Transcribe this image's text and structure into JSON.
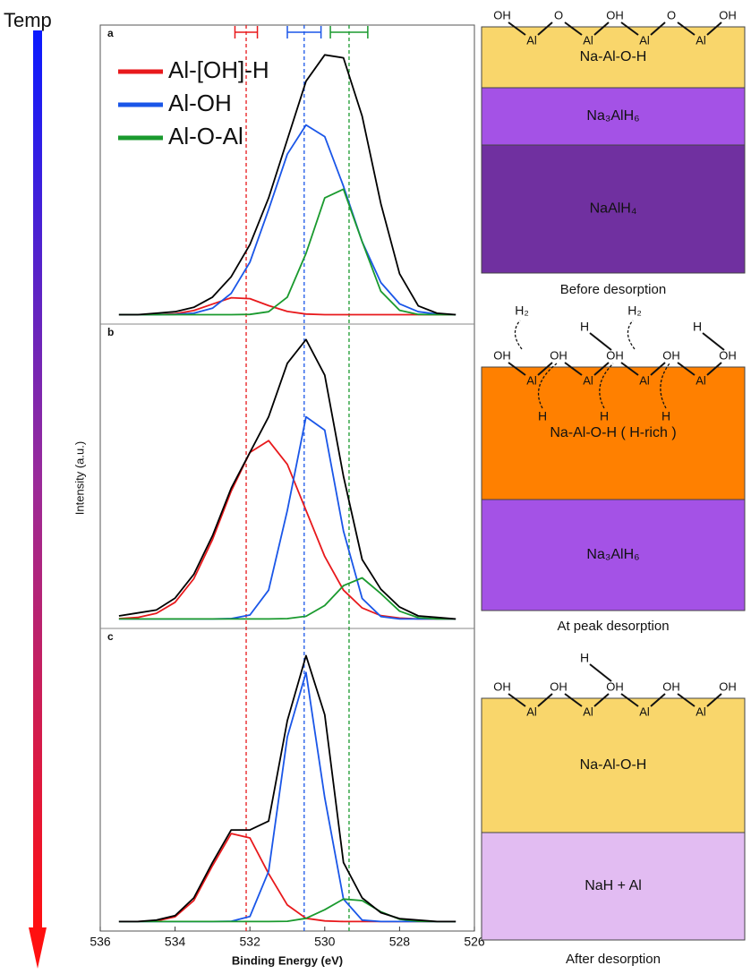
{
  "temp_label": "Temp",
  "chart_data": [
    {
      "type": "line",
      "panel_label": "a",
      "xlim": [
        536,
        526
      ],
      "ylim": [
        0,
        100
      ],
      "legend_position": "upper left",
      "x": [
        535.5,
        535,
        534.5,
        534,
        533.5,
        533,
        532.5,
        532,
        531.5,
        531,
        530.5,
        530,
        529.5,
        529,
        528.5,
        528,
        527.5,
        527,
        526.5
      ],
      "spectrum": {
        "color": "#000000",
        "values": [
          2,
          2,
          2.5,
          3,
          4.5,
          8,
          15,
          26,
          42,
          62,
          82,
          91,
          90,
          70,
          40,
          16,
          5,
          2.5,
          2
        ]
      },
      "series": [
        {
          "name": "Al-[OH]-H",
          "color": "#e8191c",
          "values": [
            2,
            2,
            2,
            2.3,
            3.4,
            5.6,
            7.8,
            7.5,
            5.1,
            3.1,
            2.2,
            2,
            2,
            2,
            2,
            2,
            2,
            2,
            2
          ]
        },
        {
          "name": "Al-OH",
          "color": "#1a56e8",
          "values": [
            2,
            2,
            2,
            2.1,
            2.5,
            4.2,
            9.3,
            20,
            38,
            57,
            67,
            63,
            46,
            27,
            13,
            5.7,
            3,
            2.2,
            2
          ]
        },
        {
          "name": "Al-O-Al",
          "color": "#1a9a2e",
          "values": [
            2,
            2,
            2,
            2,
            2,
            2,
            2,
            2.1,
            3,
            8,
            23,
            42,
            45,
            27,
            10,
            3.5,
            2.1,
            2,
            2
          ]
        }
      ],
      "reference_lines": [
        {
          "value": 532.1,
          "error": 0.3,
          "color": "#e8191c"
        },
        {
          "value": 530.55,
          "error": 0.45,
          "color": "#1a56e8"
        },
        {
          "value": 529.35,
          "error": 0.5,
          "color": "#1a9a2e"
        }
      ]
    },
    {
      "type": "line",
      "panel_label": "b",
      "xlim": [
        536,
        526
      ],
      "ylim": [
        0,
        100
      ],
      "ylabel": "Intensity (a.u.)",
      "x": [
        535.5,
        535,
        534.5,
        534,
        533.5,
        533,
        532.5,
        532,
        531.5,
        531,
        530.5,
        530,
        529.5,
        529,
        528.5,
        528,
        527.5,
        527,
        526.5
      ],
      "spectrum": {
        "color": "#000000",
        "values": [
          3,
          4,
          5,
          9,
          17,
          30,
          46,
          58,
          70,
          88,
          96,
          84,
          50,
          22,
          12,
          6,
          3,
          2.5,
          2
        ]
      },
      "series": [
        {
          "color": "#e8191c",
          "values": [
            2.1,
            2.5,
            3.9,
            7.6,
            15.5,
            28.7,
            45,
            58,
            62,
            54,
            38.5,
            23,
            11.7,
            5.7,
            3.1,
            2.3,
            2,
            2,
            2
          ]
        },
        {
          "color": "#1a56e8",
          "values": [
            2,
            2,
            2,
            2,
            2,
            2,
            2.1,
            3.3,
            11.7,
            38.5,
            70,
            65.5,
            31.6,
            8.9,
            2.8,
            2,
            2,
            2,
            2
          ]
        },
        {
          "color": "#1a9a2e",
          "values": [
            2,
            2,
            2,
            2,
            2,
            2,
            2,
            2,
            2,
            2.1,
            2.9,
            6.5,
            13.2,
            15.8,
            10.5,
            4.6,
            2.4,
            2,
            2
          ]
        }
      ]
    },
    {
      "type": "line",
      "panel_label": "c",
      "xlim": [
        536,
        526
      ],
      "ylim": [
        0,
        100
      ],
      "xticks": [
        536,
        534,
        532,
        530,
        528,
        526
      ],
      "xlabel": "Binding Energy (eV)",
      "x": [
        535.5,
        535,
        534.5,
        534,
        533.5,
        533,
        532.5,
        532,
        531.5,
        531,
        530.5,
        530,
        529.5,
        529,
        528.5,
        528,
        527.5,
        527,
        526.5
      ],
      "spectrum": {
        "color": "#000000",
        "values": [
          2,
          2,
          2.5,
          4,
          10,
          22,
          33,
          33,
          36,
          70,
          92,
          72,
          22,
          10,
          5,
          3,
          2.5,
          2,
          2
        ]
      },
      "series": [
        {
          "color": "#e8191c",
          "values": [
            2,
            2,
            2.2,
            3.6,
            9.1,
            20.9,
            31.8,
            30.3,
            18.2,
            7.6,
            3.1,
            2.2,
            2,
            2,
            2,
            2,
            2,
            2,
            2
          ]
        },
        {
          "color": "#1a56e8",
          "values": [
            2,
            2,
            2,
            2,
            2,
            2,
            2.1,
            3.7,
            19,
            64.5,
            86.3,
            43.9,
            9.6,
            2.5,
            2,
            2,
            2,
            2,
            2
          ]
        },
        {
          "color": "#1a9a2e",
          "values": [
            2,
            2,
            2,
            2,
            2,
            2,
            2,
            2,
            2,
            2.1,
            3.1,
            6,
            9.6,
            9.1,
            5.3,
            2.8,
            2.1,
            2,
            2
          ]
        }
      ]
    }
  ],
  "diagrams": [
    {
      "surface": {
        "top": [
          "OH",
          "O",
          "OH",
          "O",
          "OH"
        ],
        "bottom": [
          "Al",
          "Al",
          "Al",
          "Al"
        ]
      },
      "layers": [
        {
          "label": "Na-Al-O-H",
          "color": "#f9d66b",
          "text_color": "#111111"
        },
        {
          "label": "Na₃AlH₆",
          "color": "#a452e6",
          "text_color": "#ffffff"
        },
        {
          "label": "NaAlH₄",
          "color": "#7030a0",
          "text_color": "#ffffff"
        }
      ],
      "caption": "Before desorption"
    },
    {
      "surface": {
        "top": [
          "OH",
          "OH",
          "OH",
          "OH",
          "OH"
        ],
        "bottom": [
          "Al",
          "Al",
          "Al",
          "Al"
        ]
      },
      "released": [
        "H₂",
        "H₂"
      ],
      "bonded_h": [
        "H",
        "H"
      ],
      "migrating_h": [
        "H",
        "H",
        "H"
      ],
      "layers": [
        {
          "label": "Na-Al-O-H ( H-rich )",
          "color": "#ff8000",
          "text_color": "#111111"
        },
        {
          "label": "Na₃AlH₆",
          "color": "#a452e6",
          "text_color": "#e4dcf4"
        }
      ],
      "caption": "At peak desorption"
    },
    {
      "surface": {
        "top": [
          "OH",
          "OH",
          "OH",
          "OH",
          "OH"
        ],
        "bottom": [
          "Al",
          "Al",
          "Al",
          "Al"
        ]
      },
      "bonded_h": [
        "H"
      ],
      "layers": [
        {
          "label": "Na-Al-O-H",
          "color": "#f9d66b",
          "text_color": "#111111"
        },
        {
          "label": "NaH + Al",
          "color": "#e2bcf2",
          "text_color": "#111111"
        }
      ],
      "caption": "After desorption"
    }
  ]
}
